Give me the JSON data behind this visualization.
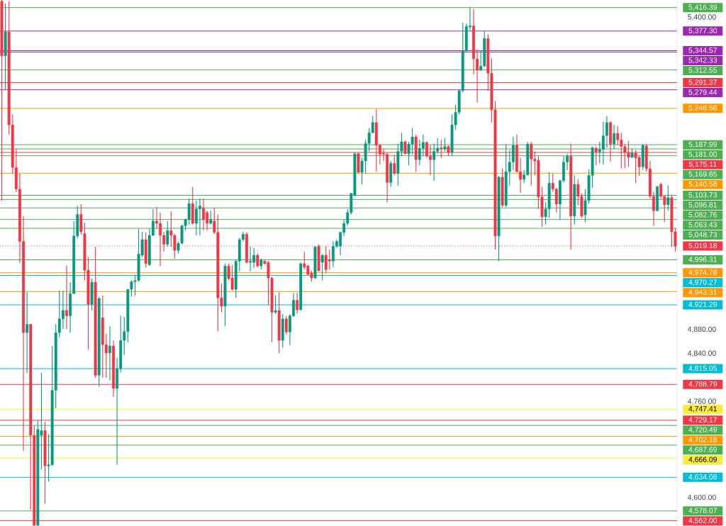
{
  "chart_data": {
    "type": "candlestick",
    "tick_labels": "y",
    "categories": [
      null,
      null,
      null,
      null,
      null,
      null,
      null,
      null,
      null,
      null,
      null,
      null,
      null,
      null,
      null,
      null,
      null,
      null,
      null,
      null,
      null,
      null,
      null,
      null,
      null,
      null,
      null,
      null,
      null,
      null,
      null,
      null,
      null,
      null,
      null,
      null,
      null,
      null,
      null,
      null,
      null,
      null,
      null,
      null,
      null,
      null,
      null,
      null,
      null,
      null,
      null,
      null,
      null,
      null,
      null,
      null,
      null,
      null,
      null,
      null,
      null,
      null,
      null,
      null,
      null,
      null,
      null,
      null,
      null,
      null,
      null,
      null,
      null,
      null,
      null,
      null,
      null,
      null,
      null,
      null,
      null,
      null,
      null,
      null,
      null,
      null,
      null,
      null,
      null,
      null,
      null,
      null,
      null,
      null,
      null,
      null,
      null,
      null,
      null,
      null,
      null,
      null,
      null,
      null,
      null,
      null,
      null,
      null,
      null,
      null,
      null,
      null,
      null,
      null,
      null,
      null,
      null,
      null,
      null,
      null,
      null,
      null,
      null,
      null,
      null,
      null,
      null,
      null,
      null,
      null,
      null,
      null,
      null,
      null,
      null,
      null,
      null,
      null,
      null,
      null,
      null,
      null,
      null,
      null,
      null,
      null,
      null,
      null,
      null,
      null,
      null,
      null,
      null,
      null,
      null,
      null,
      null,
      null,
      null,
      null,
      null,
      null,
      null,
      null,
      null,
      null,
      null,
      null,
      null,
      null,
      null,
      null,
      null,
      null,
      null,
      null,
      null,
      null,
      null,
      null,
      null,
      null,
      null,
      null,
      null,
      null,
      null,
      null
    ],
    "ohlc": [
      [
        5427,
        5429,
        5095,
        5336
      ],
      [
        5336,
        5423,
        5280,
        5376
      ],
      [
        5376,
        5427,
        5205,
        5221
      ],
      [
        5221,
        5238,
        5140,
        5150
      ],
      [
        5150,
        5181,
        5109,
        5114
      ],
      [
        5114,
        5140,
        4991,
        5027
      ],
      [
        5027,
        5069,
        4678,
        4875
      ],
      [
        4875,
        4942,
        4808,
        4889
      ],
      [
        4889,
        4889,
        4580,
        4704
      ],
      [
        4704,
        4720,
        4554,
        4554
      ],
      [
        4554,
        4729,
        4554,
        4714
      ],
      [
        4704,
        4808,
        4647,
        4712
      ],
      [
        4712,
        4726,
        4590,
        4653
      ],
      [
        4653,
        4706,
        4627,
        4655
      ],
      [
        4655,
        4853,
        4653,
        4779
      ],
      [
        4779,
        4889,
        4749,
        4875
      ],
      [
        4875,
        4945,
        4867,
        4898
      ],
      [
        4898,
        4945,
        4881,
        4912
      ],
      [
        4912,
        4987,
        4881,
        4903
      ],
      [
        4903,
        4959,
        4875,
        4940
      ],
      [
        4940,
        5061,
        4940,
        5036
      ],
      [
        5036,
        5086,
        5032,
        5072
      ],
      [
        5072,
        5089,
        5038,
        5043
      ],
      [
        5040,
        5058,
        4962,
        4979
      ],
      [
        4979,
        5001,
        4847,
        4922
      ],
      [
        4922,
        4965,
        4912,
        4959
      ],
      [
        4959,
        5018,
        4800,
        4804
      ],
      [
        4804,
        4935,
        4785,
        4932
      ],
      [
        4900,
        4937,
        4800,
        4855
      ],
      [
        4855,
        4873,
        4800,
        4841
      ],
      [
        4841,
        4886,
        4796,
        4853
      ],
      [
        4853,
        4862,
        4768,
        4782
      ],
      [
        4782,
        4833,
        4655,
        4815
      ],
      [
        4815,
        4903,
        4809,
        4862
      ],
      [
        4862,
        4901,
        4838,
        4877
      ],
      [
        4877,
        4948,
        4859,
        4947
      ],
      [
        4947,
        4962,
        4935,
        4960
      ],
      [
        4960,
        4971,
        4937,
        4962
      ],
      [
        4962,
        5048,
        4960,
        5006
      ],
      [
        5004,
        5043,
        5001,
        5030
      ],
      [
        5030,
        5042,
        4983,
        4990
      ],
      [
        4988,
        5048,
        4986,
        5037
      ],
      [
        5037,
        5081,
        5036,
        5061
      ],
      [
        5061,
        5084,
        5048,
        5057
      ],
      [
        5057,
        5075,
        4986,
        5037
      ],
      [
        5037,
        5043,
        5010,
        5022
      ],
      [
        5022,
        5061,
        5018,
        5045
      ],
      [
        5045,
        5077,
        5018,
        5037
      ],
      [
        5037,
        5039,
        4998,
        5012
      ],
      [
        5012,
        5027,
        5007,
        5024
      ],
      [
        5024,
        5055,
        5022,
        5053
      ],
      [
        5053,
        5065,
        5045,
        5063
      ],
      [
        5063,
        5098,
        5055,
        5090
      ],
      [
        5090,
        5118,
        5055,
        5057
      ],
      [
        5057,
        5095,
        5037,
        5081
      ],
      [
        5081,
        5098,
        5037,
        5086
      ],
      [
        5083,
        5098,
        5045,
        5063
      ],
      [
        5075,
        5078,
        5045,
        5057
      ],
      [
        5057,
        5078,
        5055,
        5063
      ],
      [
        5061,
        5083,
        5039,
        5042
      ],
      [
        5042,
        5072,
        4877,
        4933
      ],
      [
        4933,
        4957,
        4909,
        4919
      ],
      [
        4919,
        4990,
        4886,
        4986
      ],
      [
        4986,
        4990,
        4962,
        4965
      ],
      [
        4966,
        4988,
        4945,
        4947
      ],
      [
        4947,
        4996,
        4933,
        4994
      ],
      [
        4994,
        5033,
        4977,
        5030
      ],
      [
        5030,
        5043,
        5027,
        5039
      ],
      [
        5039,
        5042,
        4990,
        4992
      ],
      [
        4992,
        5018,
        4977,
        4994
      ],
      [
        4992,
        5016,
        4983,
        5004
      ],
      [
        5004,
        5007,
        4984,
        4986
      ],
      [
        4986,
        4998,
        4980,
        4996
      ],
      [
        4994,
        4996,
        4988,
        4990
      ],
      [
        4992,
        4994,
        4921,
        4966
      ],
      [
        4966,
        4968,
        4859,
        4909
      ],
      [
        4909,
        4937,
        4906,
        4912
      ],
      [
        4912,
        4942,
        4841,
        4862
      ],
      [
        4862,
        4906,
        4850,
        4898
      ],
      [
        4898,
        4903,
        4872,
        4876
      ],
      [
        4876,
        4906,
        4854,
        4903
      ],
      [
        4903,
        4941,
        4901,
        4929
      ],
      [
        4929,
        4941,
        4907,
        4913
      ],
      [
        4913,
        4992,
        4912,
        4990
      ],
      [
        4990,
        5010,
        4980,
        4984
      ],
      [
        4986,
        4988,
        4971,
        4972
      ],
      [
        4974,
        4978,
        4960,
        4966
      ],
      [
        4966,
        5019,
        4965,
        5018
      ],
      [
        5019,
        5022,
        4977,
        4978
      ],
      [
        4992,
        5006,
        4962,
        5004
      ],
      [
        5004,
        5019,
        4974,
        4980
      ],
      [
        4996,
        5013,
        4980,
        4994
      ],
      [
        4994,
        5027,
        4984,
        5019
      ],
      [
        5019,
        5030,
        5016,
        5027
      ],
      [
        5019,
        5043,
        5004,
        5042
      ],
      [
        5042,
        5063,
        5036,
        5057
      ],
      [
        5057,
        5081,
        5053,
        5075
      ],
      [
        5075,
        5108,
        5072,
        5107
      ],
      [
        5104,
        5175,
        5102,
        5173
      ],
      [
        5173,
        5175,
        5140,
        5142
      ],
      [
        5142,
        5166,
        5122,
        5161
      ],
      [
        5161,
        5196,
        5140,
        5190
      ],
      [
        5190,
        5216,
        5177,
        5208
      ],
      [
        5208,
        5236,
        5207,
        5225
      ],
      [
        5225,
        5247,
        5143,
        5187
      ],
      [
        5187,
        5190,
        5155,
        5172
      ],
      [
        5174,
        5181,
        5161,
        5172
      ],
      [
        5172,
        5175,
        5092,
        5125
      ],
      [
        5125,
        5161,
        5118,
        5157
      ],
      [
        5157,
        5172,
        5137,
        5140
      ],
      [
        5140,
        5190,
        5120,
        5177
      ],
      [
        5177,
        5208,
        5169,
        5193
      ],
      [
        5193,
        5195,
        5172,
        5173
      ],
      [
        5173,
        5193,
        5154,
        5189
      ],
      [
        5189,
        5216,
        5172,
        5201
      ],
      [
        5201,
        5205,
        5143,
        5163
      ],
      [
        5163,
        5196,
        5154,
        5182
      ],
      [
        5182,
        5205,
        5169,
        5192
      ],
      [
        5192,
        5193,
        5166,
        5169
      ],
      [
        5169,
        5187,
        5137,
        5163
      ],
      [
        5163,
        5190,
        5128,
        5177
      ],
      [
        5177,
        5199,
        5173,
        5182
      ],
      [
        5183,
        5196,
        5166,
        5181
      ],
      [
        5181,
        5199,
        5177,
        5185
      ],
      [
        5185,
        5187,
        5169,
        5175
      ],
      [
        5175,
        5238,
        5169,
        5221
      ],
      [
        5221,
        5255,
        5213,
        5242
      ],
      [
        5242,
        5279,
        5238,
        5278
      ],
      [
        5278,
        5391,
        5275,
        5344
      ],
      [
        5344,
        5390,
        5343,
        5385
      ],
      [
        5384,
        5416,
        5378,
        5386
      ],
      [
        5386,
        5414,
        5305,
        5331
      ],
      [
        5331,
        5346,
        5258,
        5312
      ],
      [
        5312,
        5344,
        5311,
        5319
      ],
      [
        5319,
        5378,
        5317,
        5365
      ],
      [
        5365,
        5372,
        5278,
        5307
      ],
      [
        5307,
        5332,
        5225,
        5246
      ],
      [
        5246,
        5261,
        5013,
        5036
      ],
      [
        5036,
        5136,
        4994,
        5134
      ],
      [
        5134,
        5148,
        5084,
        5087
      ],
      [
        5087,
        5189,
        5084,
        5143
      ],
      [
        5143,
        5179,
        5120,
        5159
      ],
      [
        5159,
        5201,
        5146,
        5187
      ],
      [
        5187,
        5205,
        5142,
        5143
      ],
      [
        5143,
        5166,
        5108,
        5130
      ],
      [
        5130,
        5146,
        5124,
        5138
      ],
      [
        5138,
        5193,
        5136,
        5189
      ],
      [
        5189,
        5193,
        5120,
        5164
      ],
      [
        5164,
        5177,
        5137,
        5161
      ],
      [
        5162,
        5169,
        5081,
        5101
      ],
      [
        5101,
        5118,
        5051,
        5068
      ],
      [
        5068,
        5092,
        5055,
        5081
      ],
      [
        5081,
        5142,
        5066,
        5124
      ],
      [
        5124,
        5140,
        5110,
        5114
      ],
      [
        5114,
        5116,
        5075,
        5089
      ],
      [
        5089,
        5130,
        5063,
        5128
      ],
      [
        5128,
        5169,
        5125,
        5159
      ],
      [
        5159,
        5173,
        5146,
        5169
      ],
      [
        5169,
        5190,
        5013,
        5069
      ],
      [
        5069,
        5137,
        5055,
        5122
      ],
      [
        5122,
        5131,
        5087,
        5102
      ],
      [
        5102,
        5107,
        5066,
        5069
      ],
      [
        5071,
        5114,
        5059,
        5095
      ],
      [
        5095,
        5147,
        5090,
        5137
      ],
      [
        5137,
        5185,
        5116,
        5183
      ],
      [
        5182,
        5185,
        5154,
        5176
      ],
      [
        5176,
        5193,
        5157,
        5180
      ],
      [
        5180,
        5226,
        5155,
        5203
      ],
      [
        5203,
        5236,
        5183,
        5225
      ],
      [
        5225,
        5227,
        5160,
        5189
      ],
      [
        5189,
        5221,
        5181,
        5207
      ],
      [
        5207,
        5219,
        5187,
        5196
      ],
      [
        5196,
        5208,
        5149,
        5185
      ],
      [
        5185,
        5189,
        5149,
        5175
      ],
      [
        5175,
        5194,
        5151,
        5167
      ],
      [
        5167,
        5181,
        5166,
        5174
      ],
      [
        5174,
        5179,
        5124,
        5166
      ],
      [
        5167,
        5169,
        5136,
        5151
      ],
      [
        5151,
        5189,
        5146,
        5187
      ],
      [
        5186,
        5189,
        5143,
        5148
      ],
      [
        5148,
        5161,
        5098,
        5102
      ],
      [
        5102,
        5110,
        5053,
        5078
      ],
      [
        5078,
        5120,
        5077,
        5118
      ],
      [
        5122,
        5125,
        5098,
        5102
      ],
      [
        5102,
        5103,
        5059,
        5088
      ],
      [
        5088,
        5120,
        5078,
        5100
      ],
      [
        5100,
        5104,
        5018,
        5043
      ],
      [
        5043,
        5049,
        5010,
        5019
      ]
    ],
    "ylim": [
      4553,
      5429
    ],
    "yticks": [
      {
        "value": 4600,
        "label": "4,600.00"
      },
      {
        "value": 4760,
        "label": "4,760.00"
      },
      {
        "value": 4840,
        "label": "4,840.00"
      },
      {
        "value": 4880,
        "label": "4,880.00"
      },
      {
        "value": 5400,
        "label": "5,400.00"
      }
    ],
    "ref_lines": [
      {
        "axis": "y",
        "value": 5416.39,
        "label": "5,416.39",
        "color": "#4caf50"
      },
      {
        "axis": "y",
        "value": 5377.3,
        "label": "5,377.30",
        "color": "#9c27b0"
      },
      {
        "axis": "y",
        "value": 5344.57,
        "label": "5,344.57",
        "color": "#9c27b0"
      },
      {
        "axis": "y",
        "value": 5342.33,
        "label": "5,342.33",
        "color": "#9c27b0"
      },
      {
        "axis": "y",
        "value": 5312.55,
        "label": "5,312.55",
        "color": "#4caf50"
      },
      {
        "axis": "y",
        "value": 5291.37,
        "label": "5,291.37",
        "color": "#f23645"
      },
      {
        "axis": "y",
        "value": 5279.44,
        "label": "5,279.44",
        "color": "#9c27b0"
      },
      {
        "axis": "y",
        "value": 5248.56,
        "label": "5,248.56",
        "color": "#ff9800"
      },
      {
        "axis": "y",
        "value": 5187.99,
        "label": "5,187.99",
        "color": "#4caf50"
      },
      {
        "axis": "y",
        "value": 5181.0,
        "label": "5,181.00",
        "color": "#4caf50"
      },
      {
        "axis": "y",
        "value": 5175.11,
        "label": "5,175.11",
        "color": "#f23645"
      },
      {
        "axis": "y",
        "value": 5169.65,
        "label": "5,169.65",
        "color": "#4caf50"
      },
      {
        "axis": "y",
        "value": 5140.58,
        "label": "5,140.58",
        "color": "#ff9800"
      },
      {
        "axis": "y",
        "value": 5103.73,
        "label": "5,103.73",
        "color": "#4caf50"
      },
      {
        "axis": "y",
        "value": 5096.81,
        "label": "5,096.81",
        "color": "#4caf50"
      },
      {
        "axis": "y",
        "value": 5082.76,
        "label": "5,082.76",
        "color": "#4caf50"
      },
      {
        "axis": "y",
        "value": 5063.43,
        "label": "5,063.43",
        "color": "#4caf50"
      },
      {
        "axis": "y",
        "value": 5048.73,
        "label": "5,048.73",
        "color": "#4caf50"
      },
      {
        "axis": "y",
        "value": 5019.18,
        "label": "5,019.18",
        "color": "#f23645",
        "line_style": "dotted"
      },
      {
        "axis": "y",
        "value": 4996.31,
        "label": "4,996.31",
        "color": "#4caf50"
      },
      {
        "axis": "y",
        "value": 4974.78,
        "label": "4,974.78",
        "color": "#ff9800"
      },
      {
        "axis": "y",
        "value": 4970.27,
        "label": "4,970.27",
        "color": "#00bcd4"
      },
      {
        "axis": "y",
        "value": 4943.31,
        "label": "4,943.31",
        "color": "#ff9800"
      },
      {
        "axis": "y",
        "value": 4921.29,
        "label": "4,921.29",
        "color": "#00bcd4"
      },
      {
        "axis": "y",
        "value": 4815.05,
        "label": "4,815.05",
        "color": "#00bcd4"
      },
      {
        "axis": "y",
        "value": 4788.79,
        "label": "4,788.79",
        "color": "#f23645"
      },
      {
        "axis": "y",
        "value": 4747.41,
        "label": "4,747.41",
        "color": "#ffeb3b"
      },
      {
        "axis": "y",
        "value": 4729.17,
        "label": "4,729.17",
        "color": "#f23645"
      },
      {
        "axis": "y",
        "value": 4720.49,
        "label": "4,720.49",
        "color": "#4caf50"
      },
      {
        "axis": "y",
        "value": 4702.18,
        "label": "4,702.18",
        "color": "#ff9800"
      },
      {
        "axis": "y",
        "value": 4687.69,
        "label": "4,687.69",
        "color": "#4caf50"
      },
      {
        "axis": "y",
        "value": 4666.09,
        "label": "4,666.09",
        "color": "#ffeb3b"
      },
      {
        "axis": "y",
        "value": 4634.08,
        "label": "4,634.08",
        "color": "#00bcd4"
      },
      {
        "axis": "y",
        "value": 4578.07,
        "label": "4,578.07",
        "color": "#4caf50"
      },
      {
        "axis": "y",
        "value": 4562.0,
        "label": "4,562.00",
        "color": "#f23645"
      }
    ]
  }
}
